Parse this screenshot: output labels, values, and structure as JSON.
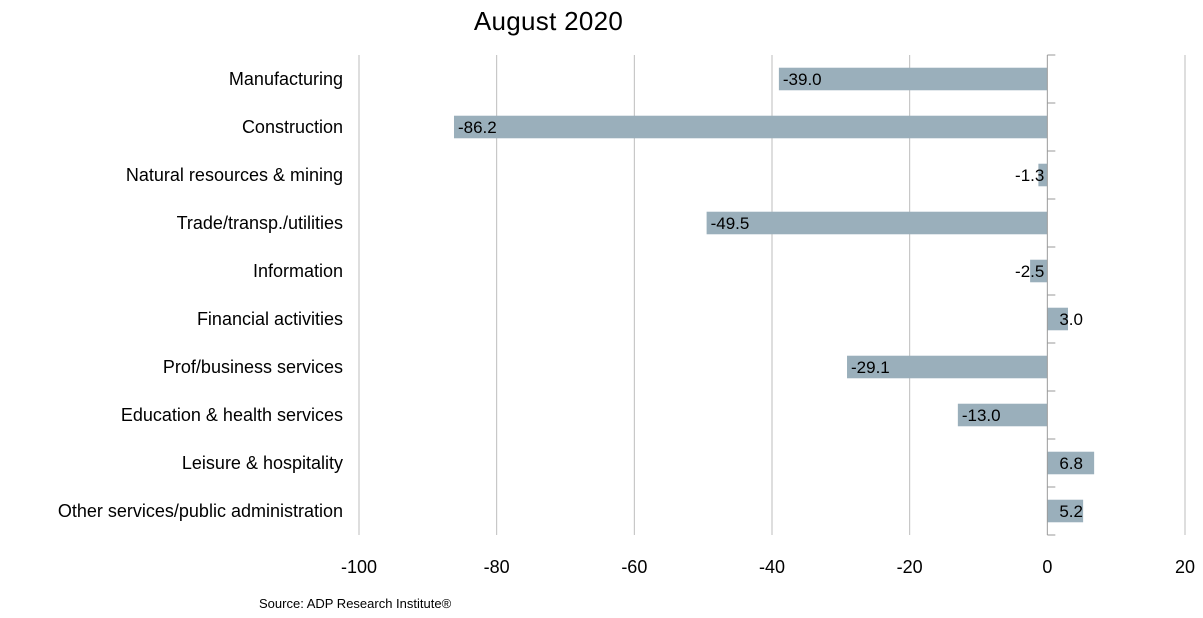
{
  "chart_data": {
    "type": "bar",
    "orientation": "horizontal",
    "title": "August 2020",
    "categories": [
      "Manufacturing",
      "Construction",
      "Natural resources & mining",
      "Trade/transp./utilities",
      "Information",
      "Financial activities",
      "Prof/business services",
      "Education & health services",
      "Leisure & hospitality",
      "Other services/public administration"
    ],
    "values": [
      -39.0,
      -86.2,
      -1.3,
      -49.5,
      -2.5,
      3.0,
      -29.1,
      -13.0,
      6.8,
      5.2
    ],
    "value_labels": [
      "-39.0",
      "-86.2",
      "-1.3",
      "-49.5",
      "-2.5",
      "3.0",
      "-29.1",
      "-13.0",
      "6.8",
      "5.2"
    ],
    "xlim": [
      -100,
      20
    ],
    "xticks": [
      -100,
      -80,
      -60,
      -40,
      -20,
      0,
      20
    ],
    "xtick_labels": [
      "-100",
      "-80",
      "-60",
      "-40",
      "-20",
      "0",
      "20"
    ],
    "grid": "vertical",
    "bar_color": "#9aafbb",
    "source": "Source: ADP Research Institute®"
  }
}
